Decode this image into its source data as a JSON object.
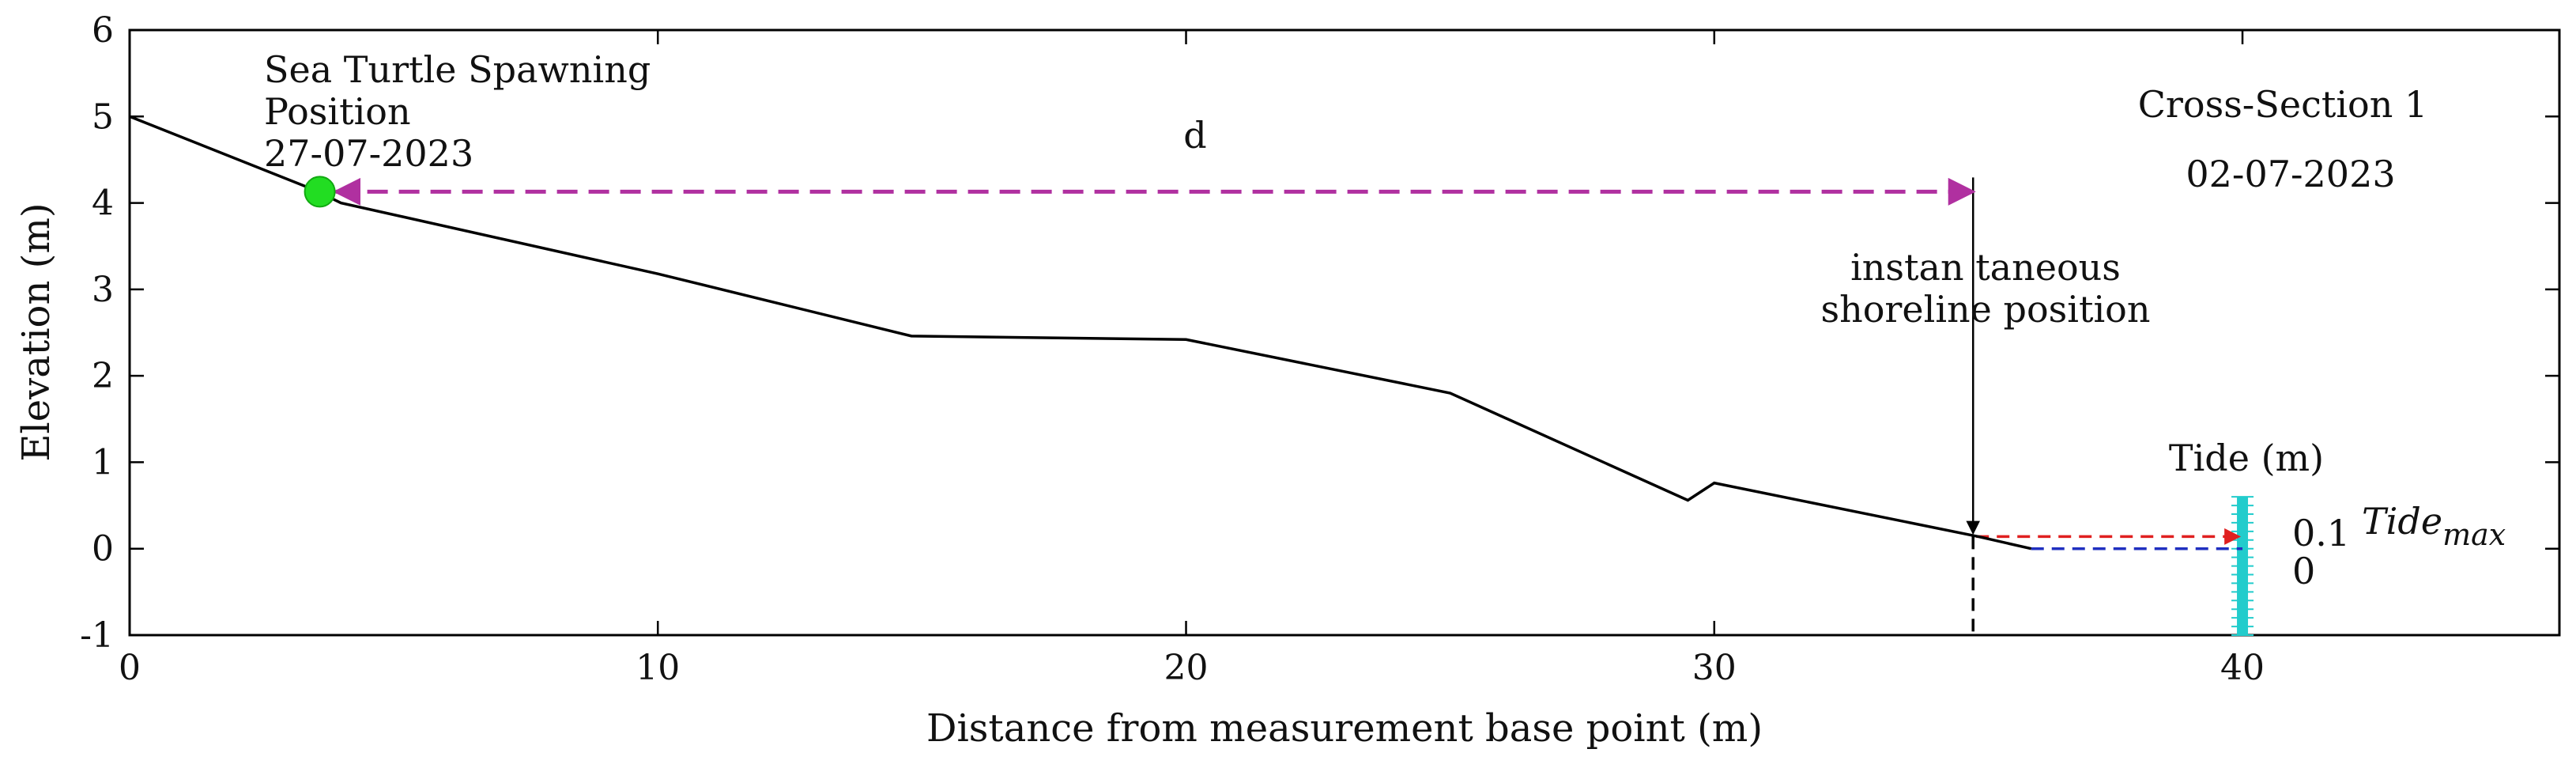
{
  "chart_data": {
    "type": "line",
    "xlabel": "Distance from measurement base point (m)",
    "ylabel": "Elevation (m)",
    "xlim": [
      0,
      46
    ],
    "ylim": [
      -1,
      6
    ],
    "xticks": [
      0,
      10,
      20,
      30,
      40
    ],
    "yticks": [
      -1,
      0,
      1,
      2,
      3,
      4,
      5,
      6
    ],
    "grid": false,
    "series": [
      {
        "color": "#000000",
        "x": [
          0,
          3.5,
          4,
          10,
          14.8,
          20,
          25,
          29.5,
          30,
          35,
          36
        ],
        "y": [
          5.0,
          4.15,
          4.0,
          3.18,
          2.46,
          2.42,
          1.8,
          0.56,
          0.76,
          0.14,
          0.0
        ]
      }
    ],
    "spawning_point": {
      "x": 3.6,
      "y": 4.13,
      "color": "#22dd22"
    },
    "distance_arrow": {
      "label": "d",
      "x_start": 3.9,
      "x_end": 34.9,
      "y": 4.13,
      "color": "#b030a0"
    },
    "shoreline": {
      "x": 34.9,
      "y": 0.14,
      "label_lines": [
        "instan taneous",
        "shoreline position"
      ]
    },
    "tide": {
      "title": "Tide (m)",
      "x": 40,
      "y_min": -1,
      "y_max": 0.6,
      "color": "#22cccc",
      "max_label": "0.1",
      "zero_label": "0",
      "max_value": 0.14,
      "max_symbol": "Tide",
      "max_subscript": "max",
      "max_line_color": "#e02020",
      "zero_line_color": "#2030c0"
    },
    "annotations": {
      "spawning_lines": [
        "Sea Turtle Spawning",
        "Position",
        "27-07-2023"
      ],
      "section_title": "Cross-Section 1",
      "section_date": "02-07-2023"
    }
  }
}
